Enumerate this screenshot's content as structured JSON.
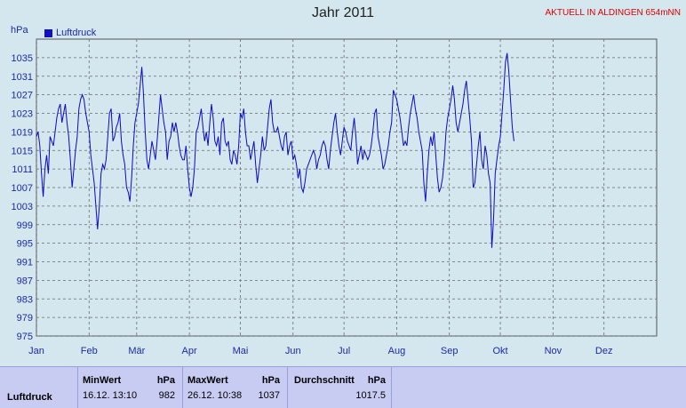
{
  "header": {
    "title": "Jahr 2011",
    "station": "AKTUELL IN ALDINGEN 654mNN",
    "unit": "hPa"
  },
  "colors": {
    "line": "#0a0ac8",
    "grid": "#6a6a6a",
    "plot_bg": "#d4e6ee",
    "text": "#1a2aa8"
  },
  "chart_data": {
    "type": "line",
    "title": "Jahr 2011",
    "ylabel": "hPa",
    "ylim": [
      975,
      1039
    ],
    "yticks": [
      975,
      979,
      983,
      987,
      991,
      995,
      999,
      1003,
      1007,
      1011,
      1015,
      1019,
      1023,
      1027,
      1031,
      1035
    ],
    "xlabels": [
      "Jan",
      "Feb",
      "Mär",
      "Apr",
      "Mai",
      "Jun",
      "Jul",
      "Aug",
      "Sep",
      "Okt",
      "Nov",
      "Dez"
    ],
    "legend": "top-left",
    "grid": true,
    "series": [
      {
        "name": "Luftdruck",
        "x_start_day": 1,
        "values": [
          1018,
          1019,
          1016,
          1010,
          1005,
          1011,
          1014,
          1010,
          1018,
          1017,
          1016,
          1019,
          1022,
          1024,
          1025,
          1021,
          1023,
          1025,
          1021,
          1018,
          1013,
          1007,
          1011,
          1015,
          1018,
          1024,
          1026,
          1027,
          1026,
          1023,
          1021,
          1019,
          1014,
          1011,
          1008,
          1003,
          998,
          1003,
          1010,
          1012,
          1011,
          1013,
          1018,
          1023,
          1024,
          1017,
          1018,
          1020,
          1021,
          1023,
          1017,
          1014,
          1012,
          1007,
          1006,
          1004,
          1009,
          1016,
          1021,
          1023,
          1025,
          1029,
          1033,
          1027,
          1019,
          1013,
          1011,
          1014,
          1017,
          1015,
          1013,
          1017,
          1022,
          1027,
          1024,
          1021,
          1019,
          1013,
          1017,
          1018,
          1021,
          1019,
          1021,
          1019,
          1016,
          1014,
          1013,
          1013,
          1016,
          1011,
          1007,
          1005,
          1007,
          1011,
          1019,
          1020,
          1022,
          1024,
          1020,
          1017,
          1019,
          1016,
          1021,
          1025,
          1022,
          1017,
          1016,
          1018,
          1014,
          1021,
          1022,
          1017,
          1016,
          1017,
          1013,
          1012,
          1015,
          1014,
          1012,
          1016,
          1023,
          1022,
          1024,
          1019,
          1016,
          1016,
          1013,
          1015,
          1017,
          1012,
          1008,
          1011,
          1014,
          1018,
          1015,
          1016,
          1020,
          1024,
          1026,
          1021,
          1019,
          1019,
          1020,
          1018,
          1016,
          1015,
          1018,
          1019,
          1014,
          1016,
          1017,
          1013,
          1014,
          1012,
          1009,
          1011,
          1007,
          1006,
          1008,
          1011,
          1012,
          1013,
          1014,
          1015,
          1014,
          1011,
          1013,
          1014,
          1016,
          1017,
          1016,
          1013,
          1011,
          1015,
          1018,
          1021,
          1023,
          1019,
          1016,
          1014,
          1017,
          1020,
          1019,
          1017,
          1016,
          1015,
          1019,
          1022,
          1018,
          1012,
          1014,
          1016,
          1013,
          1015,
          1014,
          1013,
          1014,
          1016,
          1019,
          1023,
          1024,
          1018,
          1016,
          1014,
          1011,
          1012,
          1014,
          1016,
          1019,
          1021,
          1028,
          1027,
          1026,
          1024,
          1022,
          1019,
          1016,
          1017,
          1016,
          1020,
          1023,
          1025,
          1027,
          1024,
          1022,
          1019,
          1017,
          1015,
          1008,
          1004,
          1010,
          1015,
          1018,
          1016,
          1019,
          1014,
          1009,
          1006,
          1007,
          1009,
          1013,
          1019,
          1022,
          1024,
          1026,
          1029,
          1026,
          1021,
          1019,
          1021,
          1023,
          1025,
          1028,
          1030,
          1026,
          1022,
          1017,
          1007,
          1008,
          1012,
          1016,
          1019,
          1013,
          1011,
          1016,
          1014,
          1010,
          1008,
          994,
          1000,
          1010,
          1013,
          1016,
          1018,
          1023,
          1028,
          1034,
          1036,
          1032,
          1026,
          1020,
          1017
        ]
      }
    ]
  },
  "stats": {
    "row_label": "Luftdruck",
    "min": {
      "header": "MinWert",
      "unit": "hPa",
      "time": "16.12.  13:10",
      "value": "982"
    },
    "max": {
      "header": "MaxWert",
      "unit": "hPa",
      "time": "26.12.  10:38",
      "value": "1037"
    },
    "avg": {
      "header": "Durchschnitt",
      "unit": "hPa",
      "value": "1017.5"
    }
  }
}
